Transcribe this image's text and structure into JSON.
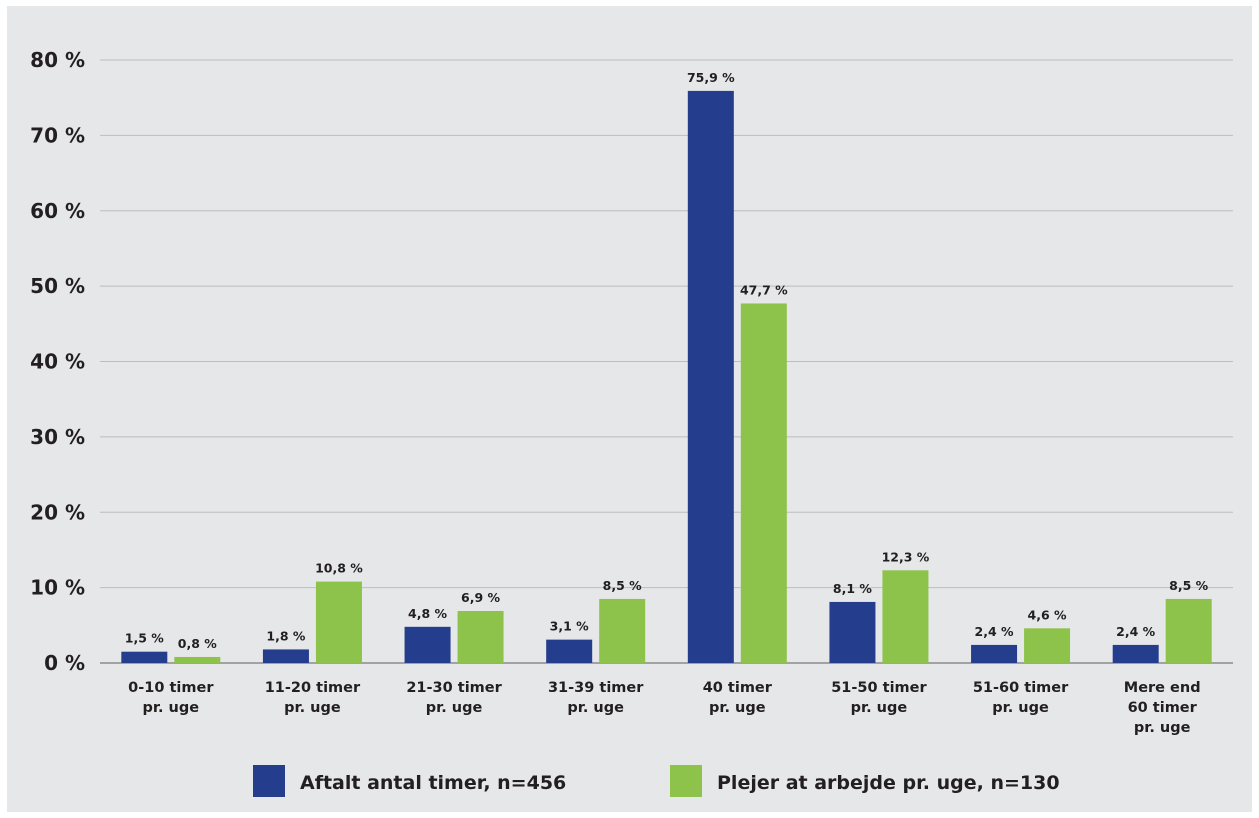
{
  "chart_data": {
    "type": "bar",
    "categories": [
      [
        "0-10 timer",
        "pr. uge"
      ],
      [
        "11-20 timer",
        "pr. uge"
      ],
      [
        "21-30 timer",
        "pr. uge"
      ],
      [
        "31-39 timer",
        "pr. uge"
      ],
      [
        "40 timer",
        "pr. uge"
      ],
      [
        "51-50 timer",
        "pr. uge"
      ],
      [
        "51-60 timer",
        "pr. uge"
      ],
      [
        "Mere end",
        "60 timer",
        "pr. uge"
      ]
    ],
    "series": [
      {
        "name": "Aftalt antal timer, n=456",
        "color": "#253d8d",
        "values": [
          1.5,
          1.8,
          4.8,
          3.1,
          75.9,
          8.1,
          2.4,
          2.4
        ],
        "labels": [
          "1,5 %",
          "1,8 %",
          "4,8 %",
          "3,1 %",
          "75,9 %",
          "8,1 %",
          "2,4 %",
          "2,4 %"
        ]
      },
      {
        "name": "Plejer at arbejde pr. uge, n=130",
        "color": "#8dc34a",
        "values": [
          0.8,
          10.8,
          6.9,
          8.5,
          47.7,
          12.3,
          4.6,
          8.5
        ],
        "labels": [
          "0,8 %",
          "10,8 %",
          "6,9 %",
          "8,5 %",
          "47,7 %",
          "12,3 %",
          "4,6 %",
          "8,5 %"
        ]
      }
    ],
    "ylim": [
      0,
      80
    ],
    "yticks": [
      {
        "value": 0,
        "label": "0 %"
      },
      {
        "value": 10,
        "label": "10 %"
      },
      {
        "value": 20,
        "label": "20 %"
      },
      {
        "value": 30,
        "label": "30 %"
      },
      {
        "value": 40,
        "label": "40 %"
      },
      {
        "value": 50,
        "label": "50 %"
      },
      {
        "value": 60,
        "label": "60 %"
      },
      {
        "value": 70,
        "label": "70 %"
      },
      {
        "value": 80,
        "label": "80 %"
      }
    ],
    "grid": true,
    "legend_position": "bottom"
  }
}
